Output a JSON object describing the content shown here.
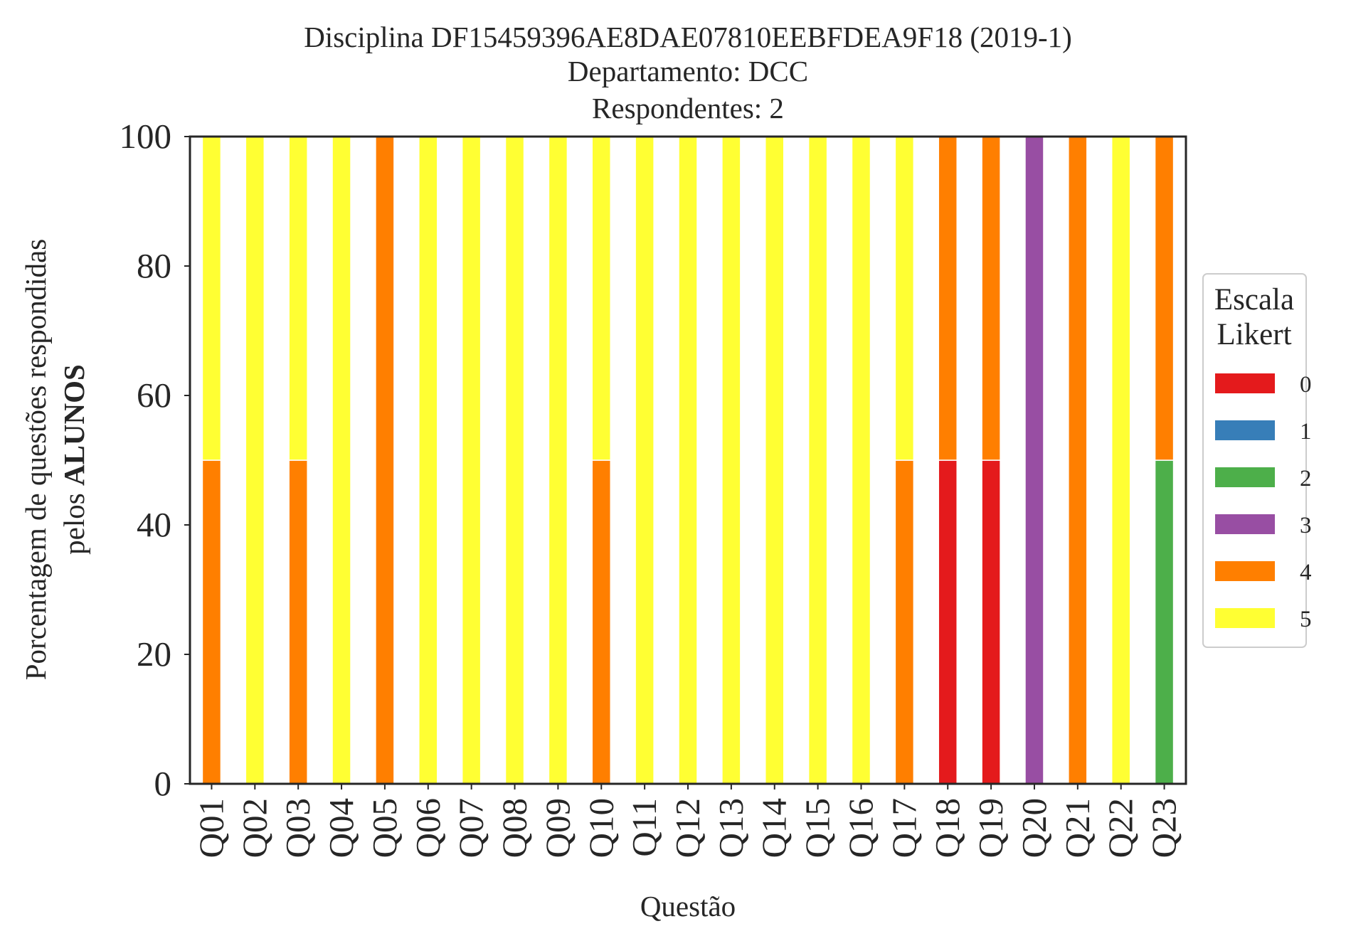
{
  "chart_data": {
    "type": "bar",
    "stacked": true,
    "title_lines": [
      "Disciplina DF15459396AE8DAE07810EEBFDEA9F18 (2019-1)",
      "Departamento: DCC",
      "Respondentes: 2"
    ],
    "xlabel": "Questão",
    "ylabel_lines": [
      "Porcentagem de questões respondidas",
      "pelos ",
      "ALUNOS"
    ],
    "ylim": [
      0,
      100
    ],
    "yticks": [
      0,
      20,
      40,
      60,
      80,
      100
    ],
    "grid": false,
    "legend_placement": "right, outside plot, vertically centered",
    "legend": {
      "title_lines": [
        "Escala",
        "Likert"
      ]
    },
    "categories": [
      "Q01",
      "Q02",
      "Q03",
      "Q04",
      "Q05",
      "Q06",
      "Q07",
      "Q08",
      "Q09",
      "Q10",
      "Q11",
      "Q12",
      "Q13",
      "Q14",
      "Q15",
      "Q16",
      "Q17",
      "Q18",
      "Q19",
      "Q20",
      "Q21",
      "Q22",
      "Q23"
    ],
    "series": [
      {
        "name": "0",
        "color": "#e41a1c",
        "values": [
          0,
          0,
          0,
          0,
          0,
          0,
          0,
          0,
          0,
          0,
          0,
          0,
          0,
          0,
          0,
          0,
          0,
          50,
          50,
          0,
          0,
          0,
          0
        ]
      },
      {
        "name": "1",
        "color": "#377eb8",
        "values": [
          0,
          0,
          0,
          0,
          0,
          0,
          0,
          0,
          0,
          0,
          0,
          0,
          0,
          0,
          0,
          0,
          0,
          0,
          0,
          0,
          0,
          0,
          0
        ]
      },
      {
        "name": "2",
        "color": "#4daf4a",
        "values": [
          0,
          0,
          0,
          0,
          0,
          0,
          0,
          0,
          0,
          0,
          0,
          0,
          0,
          0,
          0,
          0,
          0,
          0,
          0,
          0,
          0,
          0,
          50
        ]
      },
      {
        "name": "3",
        "color": "#984ea3",
        "values": [
          0,
          0,
          0,
          0,
          0,
          0,
          0,
          0,
          0,
          0,
          0,
          0,
          0,
          0,
          0,
          0,
          0,
          0,
          0,
          100,
          0,
          0,
          0
        ]
      },
      {
        "name": "4",
        "color": "#ff7f00",
        "values": [
          50,
          0,
          50,
          0,
          100,
          0,
          0,
          0,
          0,
          50,
          0,
          0,
          0,
          0,
          0,
          0,
          50,
          50,
          50,
          0,
          100,
          0,
          50
        ]
      },
      {
        "name": "5",
        "color": "#ffff33",
        "values": [
          50,
          100,
          50,
          100,
          0,
          100,
          100,
          100,
          100,
          50,
          100,
          100,
          100,
          100,
          100,
          100,
          50,
          0,
          0,
          0,
          0,
          100,
          0
        ]
      }
    ]
  }
}
